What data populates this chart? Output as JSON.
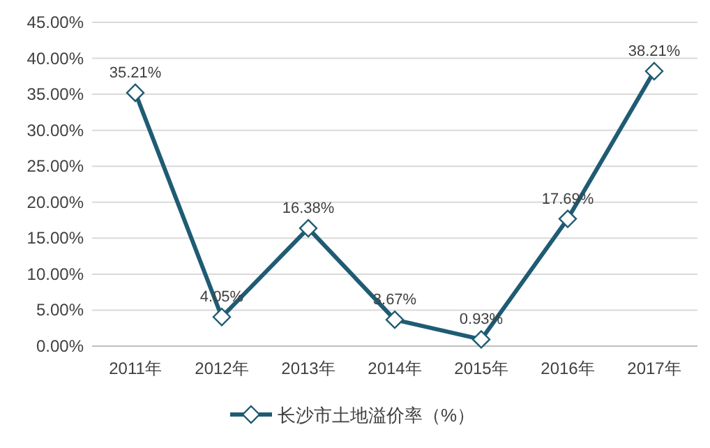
{
  "chart_data": {
    "type": "line",
    "categories": [
      "2011年",
      "2012年",
      "2013年",
      "2014年",
      "2015年",
      "2016年",
      "2017年"
    ],
    "series": [
      {
        "name": "长沙市土地溢价率（%）",
        "color": "#1f5c73",
        "values": [
          35.21,
          4.05,
          16.38,
          3.67,
          0.93,
          17.69,
          38.21
        ]
      }
    ],
    "value_labels": [
      "35.21%",
      "4.05%",
      "16.38%",
      "3.67%",
      "0.93%",
      "17.69%",
      "38.21%"
    ],
    "ylim": [
      0,
      45
    ],
    "yticks": [
      {
        "value": 0,
        "label": "0.00%"
      },
      {
        "value": 5,
        "label": "5.00%"
      },
      {
        "value": 10,
        "label": "10.00%"
      },
      {
        "value": 15,
        "label": "15.00%"
      },
      {
        "value": 20,
        "label": "20.00%"
      },
      {
        "value": 25,
        "label": "25.00%"
      },
      {
        "value": 30,
        "label": "30.00%"
      },
      {
        "value": 35,
        "label": "35.00%"
      },
      {
        "value": 40,
        "label": "40.00%"
      },
      {
        "value": 45,
        "label": "45.00%"
      }
    ],
    "grid": "y",
    "legend": "bottom",
    "marker": "diamond",
    "line_style": "solid"
  }
}
